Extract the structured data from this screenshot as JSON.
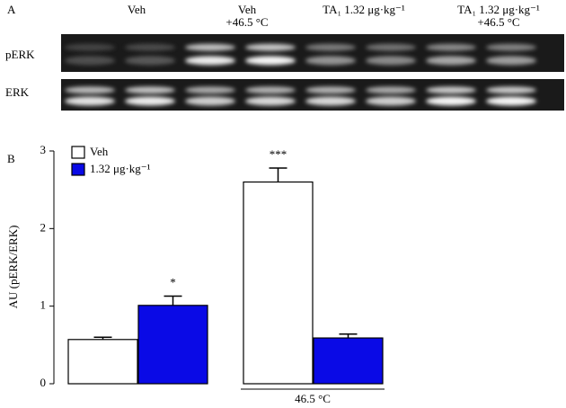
{
  "panel_a": {
    "label": "A",
    "columns": [
      [
        "Veh"
      ],
      [
        "Veh",
        "+46.5 °C"
      ],
      [
        "TA₁ 1.32 μg·kg⁻¹"
      ],
      [
        "TA₁ 1.32 μg·kg⁻¹",
        "+46.5 °C"
      ]
    ],
    "rows": [
      "pERK",
      "ERK"
    ]
  },
  "chart_data": {
    "type": "bar",
    "panel_label": "B",
    "y_label": "AU (pERK/ERK)",
    "categories": [
      null,
      "46.5 °C"
    ],
    "series": [
      {
        "name": "Veh",
        "color": "#ffffff",
        "values": [
          0.57,
          2.6
        ],
        "errors": [
          0.03,
          0.18
        ],
        "significance": [
          null,
          "***"
        ]
      },
      {
        "name": "1.32 μg·kg⁻¹",
        "color": "#0a0ae6",
        "values": [
          1.01,
          0.59
        ],
        "errors": [
          0.12,
          0.05
        ],
        "significance": [
          "*",
          null
        ]
      }
    ],
    "ylim": [
      0,
      3
    ],
    "yticks": [
      0,
      1,
      2,
      3
    ],
    "legend": "upper left"
  }
}
